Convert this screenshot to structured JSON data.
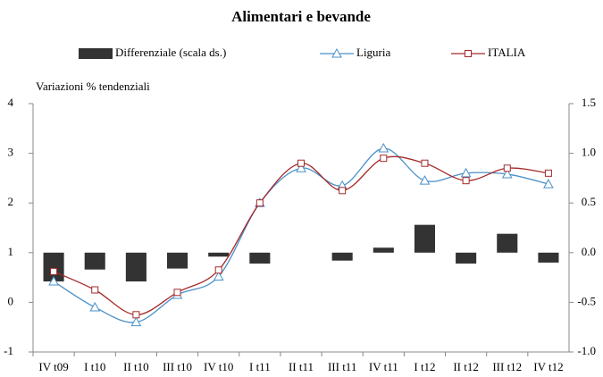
{
  "chart_data": {
    "type": "combo",
    "title": "Alimentari e bevande",
    "annotation": "Variazioni % tendenziali",
    "categories": [
      "IV t09",
      "I t10",
      "II t10",
      "III t10",
      "IV t10",
      "I t11",
      "II t11",
      "III t11",
      "IV t11",
      "I t12",
      "II t12",
      "III t12",
      "IV t12"
    ],
    "series": [
      {
        "name": "Differenziale (scala ds.)",
        "type": "bar",
        "axis": "y2",
        "color": "#333333",
        "values": [
          -0.29,
          -0.17,
          -0.29,
          -0.16,
          -0.04,
          -0.11,
          0,
          -0.08,
          0.05,
          0.28,
          -0.11,
          0.19,
          -0.1
        ]
      },
      {
        "name": "Liguria",
        "type": "line",
        "marker": "triangle",
        "color": "#4a90c8",
        "values": [
          0.42,
          -0.1,
          -0.4,
          0.15,
          0.52,
          2.0,
          2.7,
          2.35,
          3.1,
          2.45,
          2.6,
          2.58,
          2.38
        ]
      },
      {
        "name": "ITALIA",
        "type": "line",
        "marker": "square",
        "color": "#a52a2a",
        "values": [
          0.62,
          0.25,
          -0.25,
          0.2,
          0.65,
          2.0,
          2.8,
          2.25,
          2.9,
          2.8,
          2.45,
          2.7,
          2.6
        ]
      }
    ],
    "ylim": [
      -1,
      4
    ],
    "yticks": [
      -1,
      0,
      1,
      2,
      3,
      4
    ],
    "y2lim": [
      -1,
      1.5
    ],
    "y2ticks": [
      {
        "value": -1,
        "label": "-1.0"
      },
      -0.5,
      {
        "value": 0,
        "label": "0.0"
      },
      0.5,
      {
        "value": 1,
        "label": "1.0"
      },
      1.5
    ],
    "grid": false
  }
}
